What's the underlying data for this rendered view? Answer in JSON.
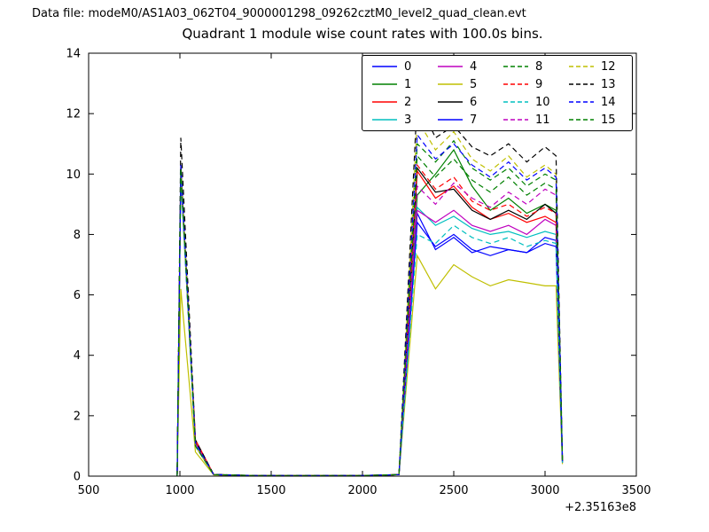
{
  "header": {
    "data_file": "Data file: modeM0/AS1A03_062T04_9000001298_09262cztM0_level2_quad_clean.evt"
  },
  "chart_data": {
    "type": "line",
    "title": "Quadrant 1 module wise count rates with 100.0s bins.",
    "xlabel": "",
    "ylabel": "",
    "xlim": [
      500,
      3500
    ],
    "ylim": [
      0,
      14
    ],
    "xticks": [
      500,
      1000,
      1500,
      2000,
      2500,
      3000,
      3500
    ],
    "yticks": [
      0,
      2,
      4,
      6,
      8,
      10,
      12,
      14
    ],
    "x_offset_label": "+2.35163e8",
    "grid": false,
    "legend": {
      "position": "upper right",
      "columns": 4
    },
    "x": [
      985,
      1005,
      1085,
      1185,
      1400,
      1700,
      2000,
      2200,
      2300,
      2400,
      2500,
      2600,
      2700,
      2800,
      2900,
      3000,
      3060,
      3095
    ],
    "series": [
      {
        "name": "0",
        "color": "#0000ff",
        "dash": false,
        "values": [
          0,
          9.9,
          1.1,
          0.05,
          0.02,
          0.02,
          0.02,
          0.05,
          8.7,
          7.5,
          7.9,
          7.4,
          7.6,
          7.5,
          7.4,
          7.9,
          7.8,
          0.45
        ]
      },
      {
        "name": "1",
        "color": "#008000",
        "dash": false,
        "values": [
          0,
          10.1,
          1.0,
          0.05,
          0.02,
          0.02,
          0.02,
          0.05,
          9.3,
          10.0,
          10.8,
          9.6,
          8.8,
          9.2,
          8.7,
          9.0,
          8.8,
          0.5
        ]
      },
      {
        "name": "2",
        "color": "#ff0000",
        "dash": false,
        "values": [
          0,
          10.2,
          1.2,
          0.05,
          0.02,
          0.02,
          0.02,
          0.05,
          10.1,
          9.2,
          9.6,
          8.9,
          8.5,
          8.7,
          8.4,
          8.6,
          8.4,
          0.5
        ]
      },
      {
        "name": "3",
        "color": "#00bfbf",
        "dash": false,
        "values": [
          0,
          9.9,
          1.0,
          0.05,
          0.02,
          0.02,
          0.02,
          0.05,
          8.9,
          8.3,
          8.6,
          8.2,
          8.0,
          8.1,
          7.9,
          8.1,
          8.0,
          0.45
        ]
      },
      {
        "name": "4",
        "color": "#bf00bf",
        "dash": false,
        "values": [
          0,
          10.0,
          1.1,
          0.05,
          0.02,
          0.02,
          0.02,
          0.05,
          8.8,
          8.4,
          8.8,
          8.3,
          8.1,
          8.3,
          8.0,
          8.5,
          8.3,
          0.5
        ]
      },
      {
        "name": "5",
        "color": "#bfbf00",
        "dash": false,
        "values": [
          0,
          6.2,
          0.8,
          0.04,
          0.02,
          0.02,
          0.02,
          0.05,
          7.3,
          6.2,
          7.0,
          6.6,
          6.3,
          6.5,
          6.4,
          6.3,
          6.3,
          0.4
        ]
      },
      {
        "name": "6",
        "color": "#000000",
        "dash": false,
        "values": [
          0,
          10.3,
          1.1,
          0.05,
          0.02,
          0.02,
          0.02,
          0.05,
          10.2,
          9.4,
          9.5,
          8.8,
          8.5,
          8.8,
          8.5,
          9.0,
          8.7,
          0.5
        ]
      },
      {
        "name": "7",
        "color": "#0000ff",
        "dash": false,
        "values": [
          0,
          10.0,
          1.0,
          0.05,
          0.02,
          0.02,
          0.02,
          0.05,
          8.4,
          7.6,
          8.0,
          7.5,
          7.3,
          7.5,
          7.4,
          7.7,
          7.6,
          0.45
        ]
      },
      {
        "name": "8",
        "color": "#008000",
        "dash": true,
        "values": [
          0,
          10.2,
          1.1,
          0.05,
          0.02,
          0.02,
          0.02,
          0.05,
          11.0,
          10.4,
          11.1,
          10.2,
          9.8,
          10.2,
          9.6,
          10.0,
          9.8,
          0.55
        ]
      },
      {
        "name": "9",
        "color": "#ff0000",
        "dash": true,
        "values": [
          0,
          10.1,
          1.2,
          0.05,
          0.02,
          0.02,
          0.02,
          0.05,
          10.3,
          9.5,
          9.9,
          9.1,
          8.8,
          9.0,
          8.6,
          8.9,
          8.7,
          0.5
        ]
      },
      {
        "name": "10",
        "color": "#00bfbf",
        "dash": true,
        "values": [
          0,
          10.0,
          1.0,
          0.05,
          0.02,
          0.02,
          0.02,
          0.05,
          8.0,
          7.7,
          8.3,
          7.9,
          7.7,
          7.9,
          7.6,
          7.8,
          7.7,
          0.45
        ]
      },
      {
        "name": "11",
        "color": "#bf00bf",
        "dash": true,
        "values": [
          0,
          10.2,
          1.1,
          0.05,
          0.02,
          0.02,
          0.02,
          0.05,
          9.6,
          9.0,
          9.7,
          9.2,
          8.9,
          9.4,
          9.0,
          9.5,
          9.3,
          0.5
        ]
      },
      {
        "name": "12",
        "color": "#bfbf00",
        "dash": true,
        "values": [
          0,
          10.1,
          1.0,
          0.05,
          0.02,
          0.02,
          0.02,
          0.05,
          11.8,
          10.8,
          11.4,
          10.5,
          10.1,
          10.6,
          9.9,
          10.3,
          10.0,
          0.55
        ]
      },
      {
        "name": "13",
        "color": "#000000",
        "dash": true,
        "values": [
          0,
          11.2,
          1.2,
          0.06,
          0.02,
          0.02,
          0.02,
          0.05,
          12.5,
          11.2,
          11.6,
          10.9,
          10.6,
          11.0,
          10.4,
          10.9,
          10.6,
          0.6
        ]
      },
      {
        "name": "14",
        "color": "#0000ff",
        "dash": true,
        "values": [
          0,
          10.3,
          1.1,
          0.05,
          0.02,
          0.02,
          0.02,
          0.05,
          11.3,
          10.5,
          11.0,
          10.3,
          9.9,
          10.4,
          9.8,
          10.2,
          9.9,
          0.55
        ]
      },
      {
        "name": "15",
        "color": "#008000",
        "dash": true,
        "values": [
          0,
          10.2,
          1.0,
          0.05,
          0.02,
          0.02,
          0.02,
          0.05,
          10.6,
          9.9,
          10.5,
          9.8,
          9.4,
          9.9,
          9.3,
          9.7,
          9.5,
          0.5
        ]
      }
    ]
  }
}
